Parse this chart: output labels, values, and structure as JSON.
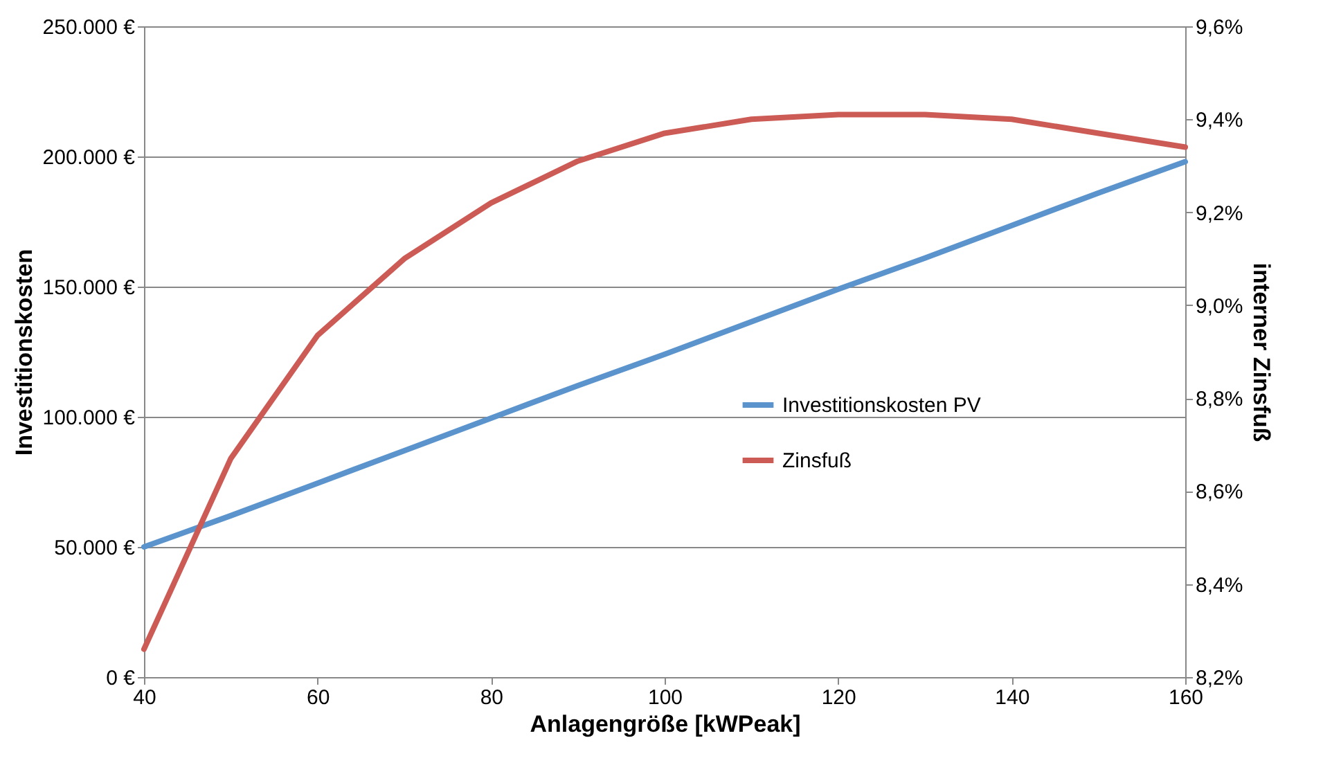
{
  "chart_data": {
    "type": "line",
    "xlabel": "Anlagengröße [kWPeak]",
    "ylabel": "Investitionskosten",
    "y2label": "interner Zinsfuß",
    "x": [
      40,
      50,
      60,
      70,
      80,
      90,
      100,
      110,
      120,
      130,
      140,
      150,
      160
    ],
    "series": [
      {
        "name": "Investitionskosten PV",
        "color": "#5b93cc",
        "values": [
          50000,
          62000,
          74500,
          87000,
          99500,
          112000,
          124000,
          136500,
          149000,
          161000,
          173500,
          186000,
          198000
        ]
      },
      {
        "name": "Zinsfuß",
        "color": "#cc5a55",
        "axis": "y2",
        "values": [
          8.26,
          8.67,
          8.935,
          9.1,
          9.22,
          9.31,
          9.37,
          9.4,
          9.41,
          9.41,
          9.4,
          9.37,
          9.34
        ]
      }
    ],
    "xlim": [
      40,
      160
    ],
    "xticks": [
      40,
      60,
      80,
      100,
      120,
      140,
      160
    ],
    "ylim": [
      0,
      250000
    ],
    "yticks": [
      {
        "value": 0,
        "label": "0 €"
      },
      {
        "value": 50000,
        "label": "50.000 €"
      },
      {
        "value": 100000,
        "label": "100.000 €"
      },
      {
        "value": 150000,
        "label": "150.000 €"
      },
      {
        "value": 200000,
        "label": "200.000 €"
      },
      {
        "value": 250000,
        "label": "250.000 €"
      }
    ],
    "y2lim": [
      8.2,
      9.6
    ],
    "y2ticks": [
      {
        "value": 8.2,
        "label": "8,2%"
      },
      {
        "value": 8.4,
        "label": "8,4%"
      },
      {
        "value": 8.6,
        "label": "8,6%"
      },
      {
        "value": 8.8,
        "label": "8,8%"
      },
      {
        "value": 9.0,
        "label": "9,0%"
      },
      {
        "value": 9.2,
        "label": "9,2%"
      },
      {
        "value": 9.4,
        "label": "9,4%"
      },
      {
        "value": 9.6,
        "label": "9,6%"
      }
    ],
    "grid": "y",
    "legend": "right",
    "marker": "none",
    "line_style": "solid"
  }
}
